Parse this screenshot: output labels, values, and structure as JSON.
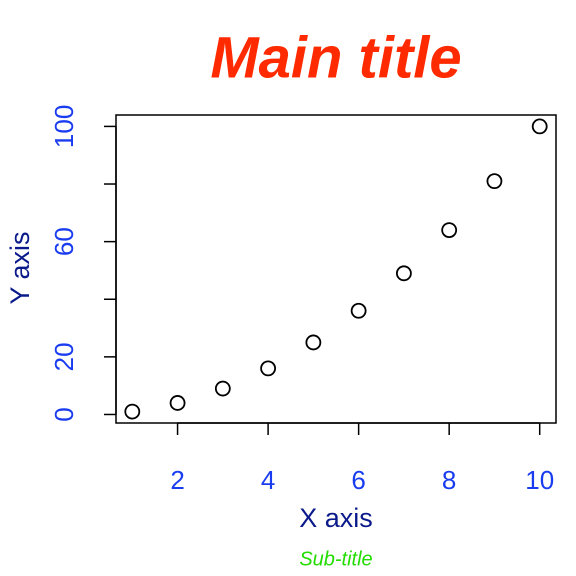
{
  "chart_data": {
    "type": "scatter",
    "title": "Main title",
    "subtitle": "Sub-title",
    "x_label": "X axis",
    "y_label": "Y axis",
    "x": [
      1,
      2,
      3,
      4,
      5,
      6,
      7,
      8,
      9,
      10
    ],
    "series": [
      {
        "values": [
          1,
          4,
          9,
          16,
          25,
          36,
          49,
          64,
          81,
          100
        ],
        "color": "#000000"
      }
    ],
    "xlim": [
      0.64,
      10.36
    ],
    "ylim": [
      -2.96,
      103.96
    ],
    "xticks": [
      2,
      4,
      6,
      8,
      10
    ],
    "yticks": [
      0,
      20,
      {
        "value": 40,
        "label": null
      },
      60,
      {
        "value": 80,
        "label": null
      },
      100
    ],
    "title_color": "#ff2a00",
    "subtitle_color": "#22dd00",
    "axis_label_color": "#0a1a8a",
    "tick_label_color": "#1a3cf0",
    "grid": false
  }
}
